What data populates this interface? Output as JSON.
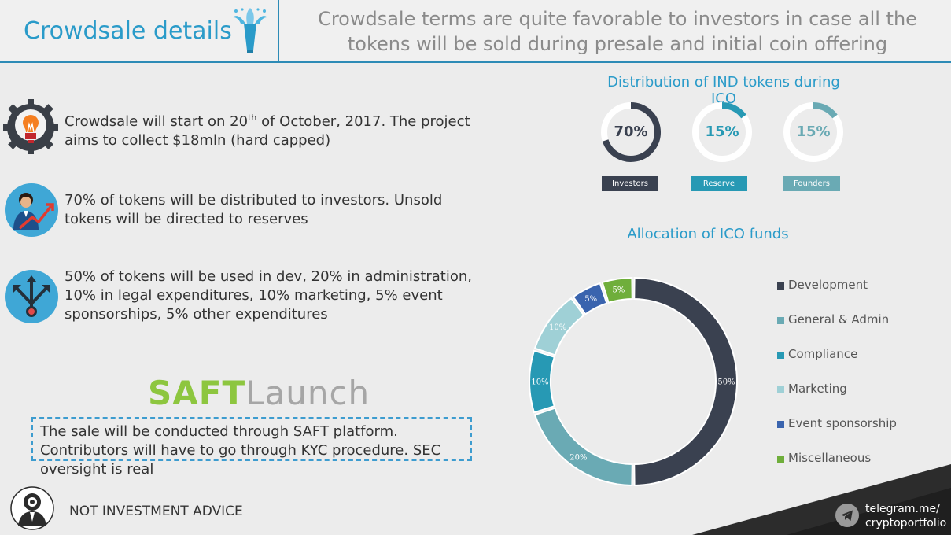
{
  "header": {
    "title": "Crowdsale details",
    "subtitle": "Crowdsale terms are quite favorable to investors in case all the tokens will be sold during presale and initial coin offering"
  },
  "features": [
    {
      "icon": "lightbulb-gear-icon",
      "text_before": "Crowdsale will start on 20",
      "superscript": "th",
      "text_after": " of October, 2017. The project aims to collect $18mln (hard capped)"
    },
    {
      "icon": "investor-growth-icon",
      "text": "70% of tokens will be distributed to investors. Unsold tokens will be directed to reserves"
    },
    {
      "icon": "split-arrows-icon",
      "text": "50% of tokens will be used in dev, 20% in administration, 10% in legal expenditures, 10% marketing, 5% event sponsorships, 5% other expenditures"
    }
  ],
  "saft": {
    "logo_part1": "SAFT",
    "logo_part2": "Launch",
    "note": "The sale will be conducted through SAFT platform. Contributors will have to go through KYC procedure. SEC oversight is real"
  },
  "footer": {
    "disclaimer": "NOT INVESTMENT ADVICE",
    "telegram_line1": "telegram.me/",
    "telegram_line2": "cryptoportfolio"
  },
  "colors": {
    "accent": "#2a9bc9",
    "development": "#3a4150",
    "general_admin": "#6aaab4",
    "compliance": "#2799b4",
    "marketing": "#9fd0d6",
    "event_sponsorship": "#3a64ae",
    "miscellaneous": "#6fae3b"
  },
  "chart_data": [
    {
      "type": "pie",
      "title": "Distribution of IND tokens during ICO",
      "slices": [
        {
          "name": "Investors",
          "value": 70,
          "label": "70%",
          "color": "#3a4150"
        },
        {
          "name": "Reserve",
          "value": 15,
          "label": "15%",
          "color": "#2799b4"
        },
        {
          "name": "Founders",
          "value": 15,
          "label": "15%",
          "color": "#6aaab4"
        }
      ]
    },
    {
      "type": "pie",
      "title": "Allocation of ICO funds",
      "legend": "right",
      "slices": [
        {
          "name": "Development",
          "value": 50,
          "label": "50%",
          "color": "#3a4150"
        },
        {
          "name": "General & Admin",
          "value": 20,
          "label": "20%",
          "color": "#6aaab4"
        },
        {
          "name": "Compliance",
          "value": 10,
          "label": "10%",
          "color": "#2799b4"
        },
        {
          "name": "Marketing",
          "value": 10,
          "label": "10%",
          "color": "#9fd0d6"
        },
        {
          "name": "Event sponsorship",
          "value": 5,
          "label": "5%",
          "color": "#3a64ae"
        },
        {
          "name": "Miscellaneous",
          "value": 5,
          "label": "5%",
          "color": "#6fae3b"
        }
      ]
    }
  ]
}
